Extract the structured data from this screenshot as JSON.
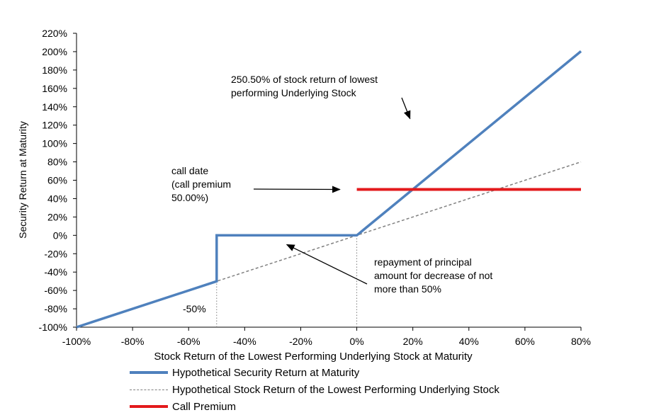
{
  "chart_data": {
    "type": "line",
    "xlabel": "Stock Return of the Lowest Performing Underlying Stock at Maturity",
    "ylabel": "Security Return at Maturity",
    "xlim": [
      -100,
      80
    ],
    "ylim": [
      -100,
      220
    ],
    "x_ticks": [
      "-100%",
      "-80%",
      "-60%",
      "-40%",
      "-20%",
      "0%",
      "20%",
      "40%",
      "60%",
      "80%"
    ],
    "y_ticks": [
      "-100%",
      "-80%",
      "-60%",
      "-40%",
      "-20%",
      "0%",
      "20%",
      "40%",
      "60%",
      "80%",
      "100%",
      "120%",
      "140%",
      "160%",
      "180%",
      "200%",
      "220%"
    ],
    "x_tick_values": [
      -100,
      -80,
      -60,
      -40,
      -20,
      0,
      20,
      40,
      60,
      80
    ],
    "y_tick_values": [
      -100,
      -80,
      -60,
      -40,
      -20,
      0,
      20,
      40,
      60,
      80,
      100,
      120,
      140,
      160,
      180,
      200,
      220
    ],
    "grid": false,
    "legend_position": "bottom",
    "series": [
      {
        "name": "Hypothetical Security Return at Maturity",
        "color": "#4f81bd",
        "style": "solid",
        "points": [
          [
            -100,
            -100
          ],
          [
            -50,
            -50
          ],
          [
            -50,
            0
          ],
          [
            0,
            0
          ],
          [
            80,
            200.4
          ]
        ]
      },
      {
        "name": "Hypothetical Stock Return of the Lowest Performing Underlying Stock",
        "color": "#808080",
        "style": "dashed",
        "points": [
          [
            -100,
            -100
          ],
          [
            80,
            80
          ]
        ]
      },
      {
        "name": "Call Premium",
        "color": "#e31a1c",
        "style": "solid",
        "points": [
          [
            0,
            50
          ],
          [
            80,
            50
          ]
        ]
      }
    ],
    "reference_lines": [
      {
        "x": -50,
        "from_y": -100,
        "to_y": -50
      },
      {
        "x": 0,
        "from_y": -100,
        "to_y": 0
      }
    ],
    "annotations": [
      {
        "lines": [
          "250.50% of stock return of lowest",
          "performing Underlying  Stock"
        ],
        "arrow_to": [
          19,
          127
        ]
      },
      {
        "lines": [
          "call date",
          "(call premium",
          "50.00%)"
        ],
        "arrow_to": [
          -6,
          50
        ]
      },
      {
        "lines": [
          "repayment of principal",
          "amount for decrease of not",
          "more than 50%"
        ],
        "arrow_to": [
          -25,
          -10
        ]
      },
      {
        "lines": [
          "-50%"
        ]
      }
    ]
  }
}
